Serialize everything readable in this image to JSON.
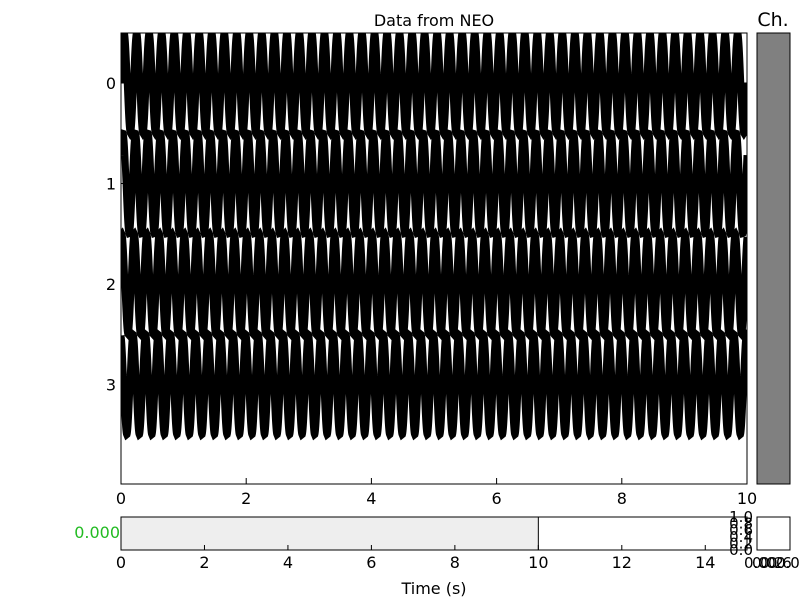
{
  "chart_data": [
    {
      "type": "line",
      "title": "Data from NEO",
      "xlabel": "",
      "ylabel": "",
      "xlim": [
        0,
        10
      ],
      "x_ticks": [
        "0",
        "2",
        "4",
        "6",
        "8",
        "10"
      ],
      "channels": [
        "0",
        "1",
        "2",
        "3"
      ],
      "signal": {
        "form": "sine",
        "cycles_per_second": 5,
        "amplitude_channel_units": 0.5
      },
      "line_color": "#000000",
      "grid": false
    },
    {
      "type": "bar",
      "title": "Ch.",
      "fill_color": "#808080"
    },
    {
      "type": "area",
      "xlabel": "Time (s)",
      "xlim": [
        0,
        15
      ],
      "x_ticks": [
        "0",
        "2",
        "4",
        "6",
        "8",
        "10",
        "12",
        "14"
      ],
      "selection": [
        0,
        10
      ],
      "selection_color": "#eeeeee",
      "readout": "0.000",
      "readout_color": "#22bb22"
    },
    {
      "type": "scatter",
      "y_ticks": [
        "0.0",
        "0.2",
        "0.4",
        "0.6",
        "0.8",
        "1.0"
      ],
      "x_ticks": [
        "0.0",
        "0.2",
        "0.4",
        "0.6",
        "0.8",
        "1.0"
      ],
      "x_ticks_rendered": [
        "0.0",
        "0.0",
        "0.2",
        "0.6",
        "0.0"
      ]
    }
  ]
}
